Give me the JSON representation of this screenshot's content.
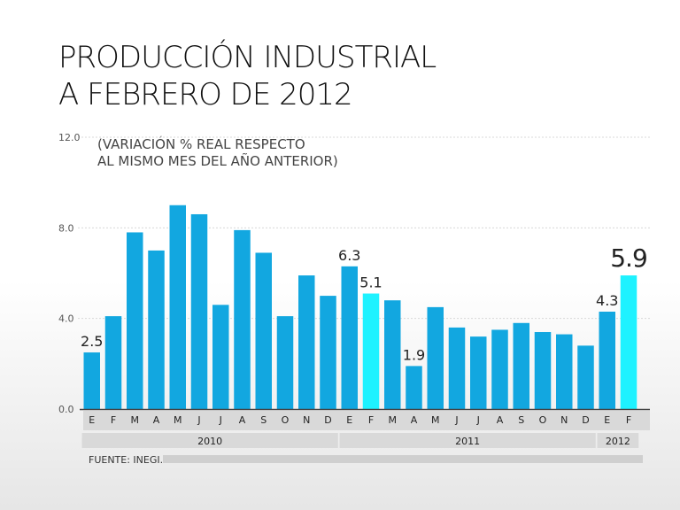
{
  "chart_data": {
    "type": "bar",
    "title": "PRODUCCIÓN INDUSTRIAL A FEBRERO DE 2012",
    "title_lines": [
      "PRODUCCIÓN INDUSTRIAL",
      "A FEBRERO DE 2012"
    ],
    "subtitle_lines": [
      "(VARIACIÓN % REAL RESPECTO",
      "AL MISMO MES DEL AÑO ANTERIOR)"
    ],
    "source": "FUENTE: INEGI.",
    "ylim": [
      0,
      12
    ],
    "yticks": [
      0,
      4,
      8,
      12
    ],
    "ytick_labels": [
      "0.0",
      "4.0",
      "8.0",
      "12.0"
    ],
    "categories": [
      "E",
      "F",
      "M",
      "A",
      "M",
      "J",
      "J",
      "A",
      "S",
      "O",
      "N",
      "D",
      "E",
      "F",
      "M",
      "A",
      "M",
      "J",
      "J",
      "A",
      "S",
      "O",
      "N",
      "D",
      "E",
      "F"
    ],
    "values": [
      2.5,
      4.1,
      7.8,
      7.0,
      9.0,
      8.6,
      4.6,
      7.9,
      6.9,
      4.1,
      5.9,
      5.0,
      6.3,
      5.1,
      4.8,
      1.9,
      4.5,
      3.6,
      3.2,
      3.5,
      3.8,
      3.4,
      3.3,
      2.8,
      4.3,
      5.9
    ],
    "highlight": [
      false,
      false,
      false,
      false,
      false,
      false,
      false,
      false,
      false,
      false,
      false,
      false,
      false,
      true,
      false,
      false,
      false,
      false,
      false,
      false,
      false,
      false,
      false,
      false,
      false,
      true
    ],
    "data_labels": [
      {
        "index": 0,
        "text": "2.5"
      },
      {
        "index": 12,
        "text": "6.3"
      },
      {
        "index": 13,
        "text": "5.1"
      },
      {
        "index": 15,
        "text": "1.9"
      },
      {
        "index": 24,
        "text": "4.3"
      },
      {
        "index": 25,
        "text": "5.9",
        "emphasis": true
      }
    ],
    "years": [
      {
        "label": "2010",
        "start": 0,
        "end": 11
      },
      {
        "label": "2011",
        "start": 12,
        "end": 23
      },
      {
        "label": "2012",
        "start": 24,
        "end": 25
      }
    ],
    "colors": {
      "bar": "#12a7e0",
      "highlight": "#1ef2ff",
      "axis": "#444444",
      "grid": "#d8d8d8",
      "band": "#d9d9d9"
    }
  }
}
